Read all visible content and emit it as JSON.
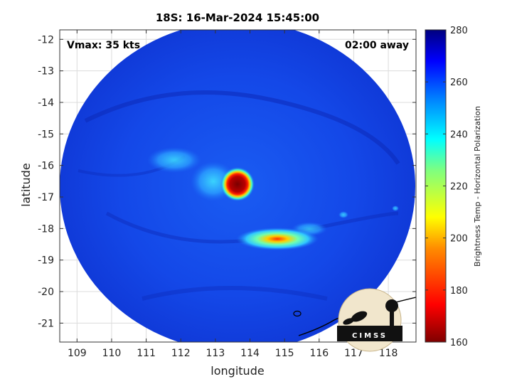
{
  "chart_data": {
    "type": "heatmap",
    "title": "18S: 16-Mar-2024 15:45:00",
    "xlabel": "longitude",
    "ylabel": "latitude",
    "xlim": [
      108.5,
      118.8
    ],
    "ylim": [
      -21.6,
      -11.7
    ],
    "xticks": [
      109,
      110,
      111,
      112,
      113,
      114,
      115,
      116,
      117,
      118
    ],
    "yticks": [
      -12,
      -13,
      -14,
      -15,
      -16,
      -17,
      -18,
      -19,
      -20,
      -21
    ],
    "grid": true,
    "colorbar": {
      "label": "Brightness Temp - Horizontal Polarization",
      "min": 160,
      "max": 280,
      "ticks": [
        160,
        180,
        200,
        220,
        240,
        260,
        280
      ],
      "colormap": "jet"
    },
    "features": [
      {
        "lon": 113.5,
        "lat": -16.6,
        "value": 165
      },
      {
        "lon": 114.5,
        "lat": -18.3,
        "value": 185
      }
    ]
  },
  "annotations": {
    "vmax": "Vmax: 35 kts",
    "time_away": "02:00 away"
  },
  "logo": {
    "text": "CIMSS"
  },
  "colors": {
    "background_swath": "#1248e6",
    "cold_core": "#8b0000",
    "grid": "#dcdcdc"
  }
}
